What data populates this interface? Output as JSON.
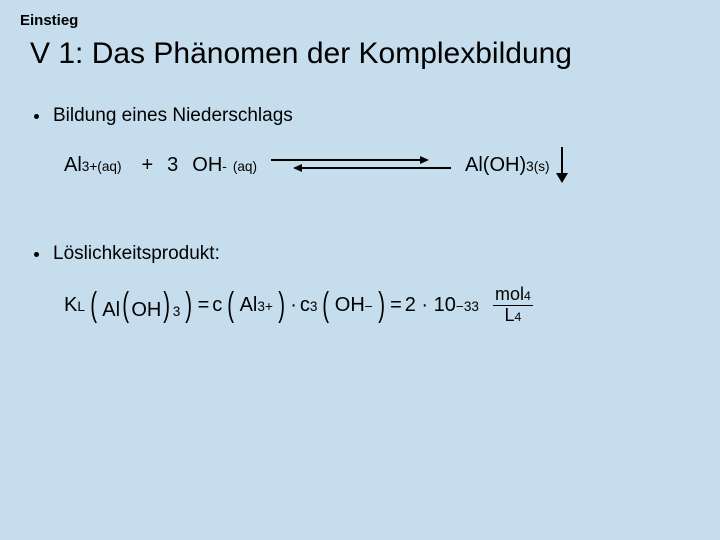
{
  "page_background": "#c5dded",
  "text_color": "#000000",
  "section_label": "Einstieg",
  "title": "V 1: Das Phänomen der Komplexbildung",
  "bullets": {
    "b1": "Bildung eines Niederschlags",
    "b2": "Löslichkeitsprodukt:"
  },
  "equation1": {
    "r1": {
      "base": "Al",
      "sup": "3+",
      "state": "(aq)"
    },
    "plus": "+",
    "coef": "3",
    "r2": {
      "base": "OH",
      "sup": "-",
      "state": "(aq)"
    },
    "p1": {
      "base": "Al(OH)",
      "sub": "3",
      "state_sub": " (s)"
    },
    "arrow_type": "equilibrium",
    "precipitate_arrow": true
  },
  "formula2": {
    "K": "K",
    "Ksub": "L",
    "lp1": "(",
    "arg1_base": "Al",
    "arg1_paren": "OH",
    "arg1_sub": "3",
    "rp1": ")",
    "eq": "=",
    "c": "c",
    "lp2": "(",
    "c1_base": "Al",
    "c1_sup": "3+",
    "rp2": ")",
    "dot": "·",
    "csup": "3",
    "lp3": "(",
    "c2_base": "OH",
    "c2_sup": "−",
    "rp3": ")",
    "val": "2 · 10",
    "valexp": "−33",
    "frac_num_base": "mol",
    "frac_num_exp": "4",
    "frac_den_base": "L",
    "frac_den_exp": "4"
  }
}
